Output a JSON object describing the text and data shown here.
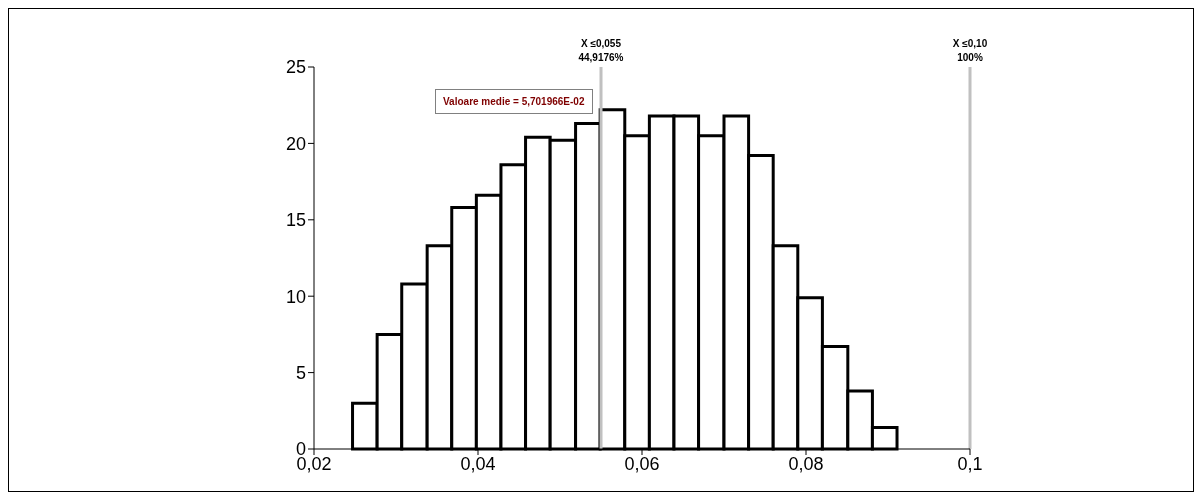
{
  "chart_data": {
    "type": "histogram",
    "bins": [
      0.0247,
      0.0277,
      0.0307,
      0.0338,
      0.0368,
      0.0398,
      0.0428,
      0.0458,
      0.0488,
      0.0519,
      0.0549,
      0.0579,
      0.0609,
      0.0639,
      0.0669,
      0.07,
      0.073,
      0.076,
      0.079,
      0.082,
      0.0851,
      0.0881,
      0.0911
    ],
    "values": [
      3.0,
      7.5,
      10.8,
      13.3,
      15.8,
      16.6,
      18.6,
      20.4,
      20.2,
      21.3,
      22.2,
      20.5,
      21.8,
      21.8,
      20.5,
      21.8,
      19.2,
      13.3,
      9.9,
      6.7,
      3.8,
      1.4
    ],
    "color": "#ffffff",
    "xlim": [
      0.02,
      0.1
    ],
    "xticks": [
      {
        "value": 0.02,
        "label": "0,02"
      },
      {
        "value": 0.04,
        "label": "0,04"
      },
      {
        "value": 0.06,
        "label": "0,06"
      },
      {
        "value": 0.08,
        "label": "0,08"
      },
      {
        "value": 0.1,
        "label": "0,1"
      }
    ],
    "ylim": [
      0,
      25
    ],
    "yticks": [
      0,
      5,
      10,
      15,
      20,
      25
    ],
    "ref_lines": [
      {
        "axis": "x",
        "value": 0.055,
        "label": "X ≤0,055\n44,9176%",
        "color": "#c0c0c0"
      },
      {
        "axis": "x",
        "value": 0.1,
        "label": "X ≤0,10\n100%",
        "color": "#c0c0c0"
      }
    ],
    "annotations": [
      "Valoare medie = 5,701966E-02"
    ]
  }
}
